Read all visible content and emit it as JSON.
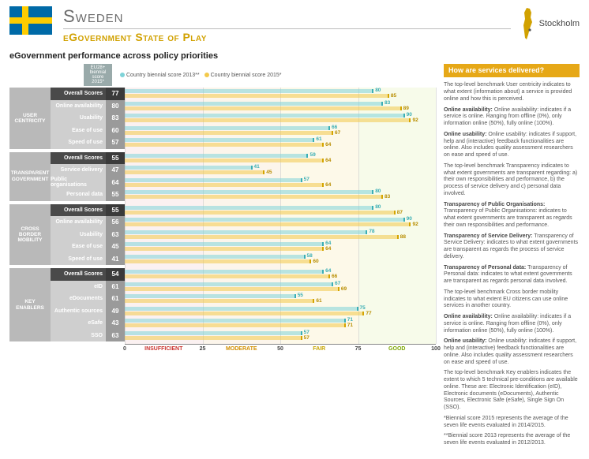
{
  "header": {
    "country": "Sweden",
    "subtitle": "eGovernment State of Play",
    "capital": "Stockholm"
  },
  "section_title": "eGovernment performance across policy priorities",
  "legend": {
    "scorebox": "EU28+ biennial score 2015*",
    "a": "Country biennial score 2013**",
    "b": "Country biennial score 2015*"
  },
  "delivered_title": "How are services delivered?",
  "text": {
    "p1": "The top-level benchmark User centricity indicates to what extent (information about) a service is provided online and how this is perceived.",
    "p2": "Online availability: indicates if a service is online. Ranging from offline (0%), only information online (50%), fully online (100%).",
    "p3": "Online usability: indicates if support, help and (interactive) feedback functionalities are online. Also includes quality assessment researchers on ease and speed of use.",
    "p4": "The top-level benchmark Transparency indicates to what extent governments are transparent regarding: a) their own responsibilities and performance, b) the process of service delivery and c) personal data involved.",
    "p5": "Transparency of Public Organisations: indicates to what extent governments are transparent as regards their own responsibilities and performance.",
    "p6": "Transparency of Service Delivery: indicates to what extent governments are transparent as regards the process of service delivery.",
    "p7": "Transparency of Personal data: indicates to what extent governments are transparent as regards personal data involved.",
    "p8": "The top-level benchmark Cross border mobility indicates to what extent EU citizens can use online services in another country.",
    "p9": "Online availability: indicates if a service is online. Ranging from offline (0%), only information online (50%), fully online (100%).",
    "p10": "Online usability: indicates if support, help and (interactive) feedback functionalities are online. Also includes quality assessment researchers on ease and speed of use.",
    "p11": "The top-level benchmark Key enablers indicates the extent to which 5 technical pre-conditions are available online. These are: Electronic Identification (eID), Electronic documents (eDocuments), Authentic Sources, Electronic Safe (eSafe), Single Sign On (SSO).",
    "p12": "*Biennial score 2015 represents the average of the seven life events evaluated in 2014/2015.",
    "p13": "**Biennial score 2013 represents the average of the seven life events evaluated in 2012/2013."
  },
  "axis": {
    "ticks": [
      0,
      25,
      50,
      75,
      100
    ],
    "bands": [
      {
        "label": "INSUFFICIENT",
        "color": "#c9302c",
        "from": 0,
        "to": 25,
        "bg": "rgba(220,120,120,.10)"
      },
      {
        "label": "MODERATE",
        "color": "#d18f00",
        "from": 25,
        "to": 50,
        "bg": "rgba(230,170,90,.12)"
      },
      {
        "label": "FAIR",
        "color": "#c7a500",
        "from": 50,
        "to": 75,
        "bg": "rgba(240,215,120,.16)"
      },
      {
        "label": "GOOD",
        "color": "#7aa500",
        "from": 75,
        "to": 100,
        "bg": "rgba(210,235,140,.18)"
      }
    ]
  },
  "groups": [
    {
      "name": "USER CENTRICITY",
      "rows": [
        {
          "label": "Overall Scores",
          "eu": 77,
          "v13": 80,
          "v15": 85,
          "overall": true
        },
        {
          "label": "Online availability",
          "eu": 80,
          "v13": 83,
          "v15": 89
        },
        {
          "label": "Usability",
          "eu": 83,
          "v13": 90,
          "v15": 92
        },
        {
          "label": "Ease of use",
          "eu": 60,
          "v13": 66,
          "v15": 67
        },
        {
          "label": "Speed of use",
          "eu": 57,
          "v13": 61,
          "v15": 64
        }
      ]
    },
    {
      "name": "TRANSPARENT GOVERNMENT",
      "rows": [
        {
          "label": "Overall Scores",
          "eu": 55,
          "v13": 59,
          "v15": 64,
          "overall": true
        },
        {
          "label": "Service delivery",
          "eu": 47,
          "v13": 41,
          "v15": 45
        },
        {
          "label": "Public organisations",
          "eu": 64,
          "v13": 57,
          "v15": 64
        },
        {
          "label": "Personal data",
          "eu": 55,
          "v13": 80,
          "v15": 83
        }
      ]
    },
    {
      "name": "CROSS BORDER MOBILITY",
      "rows": [
        {
          "label": "Overall Scores",
          "eu": 55,
          "v13": 80,
          "v15": 87,
          "overall": true
        },
        {
          "label": "Online availability",
          "eu": 56,
          "v13": 90,
          "v15": 92
        },
        {
          "label": "Usability",
          "eu": 63,
          "v13": 78,
          "v15": 88
        },
        {
          "label": "Ease of use",
          "eu": 45,
          "v13": 64,
          "v15": 64
        },
        {
          "label": "Speed of use",
          "eu": 41,
          "v13": 58,
          "v15": 60
        }
      ]
    },
    {
      "name": "KEY ENABLERS",
      "rows": [
        {
          "label": "Overall Scores",
          "eu": 54,
          "v13": 64,
          "v15": 66,
          "overall": true
        },
        {
          "label": "eID",
          "eu": 61,
          "v13": 67,
          "v15": 69
        },
        {
          "label": "eDocuments",
          "eu": 61,
          "v13": 55,
          "v15": 61
        },
        {
          "label": "Authentic sources",
          "eu": 49,
          "v13": 75,
          "v15": 77
        },
        {
          "label": "eSafe",
          "eu": 43,
          "v13": 71,
          "v15": 71
        },
        {
          "label": "SSO",
          "eu": 63,
          "v13": 57,
          "v15": 57
        }
      ]
    }
  ]
}
